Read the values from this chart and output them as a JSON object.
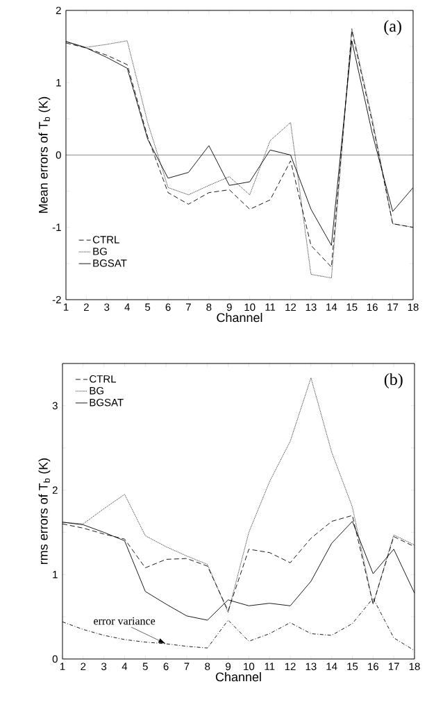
{
  "chart_data": [
    {
      "type": "line",
      "xlabel": "Channel",
      "ylabel": "Mean errors of T$_{b}$ (K)",
      "annotations": [
        "(a)"
      ],
      "x": [
        1,
        2,
        3,
        4,
        5,
        6,
        7,
        8,
        9,
        10,
        11,
        12,
        13,
        14,
        15,
        16,
        17,
        18
      ],
      "xlim": [
        1,
        18
      ],
      "xticks": [
        1,
        2,
        3,
        4,
        5,
        6,
        7,
        8,
        9,
        10,
        11,
        12,
        13,
        14,
        15,
        16,
        17,
        18
      ],
      "ylim": [
        -2,
        2
      ],
      "yticks": [
        -2,
        {
          "value": -1.5,
          "label": null
        },
        -1,
        {
          "value": -0.5,
          "label": null
        },
        0,
        {
          "value": 0.5,
          "label": null
        },
        1,
        {
          "value": 1.5,
          "label": null
        },
        2
      ],
      "ref_lines": [
        {
          "axis": "y",
          "value": 0,
          "color": "#000000"
        }
      ],
      "legend": "bottom left",
      "series": [
        {
          "name": "CTRL",
          "color": "#000000",
          "line_style": "dashed",
          "values": [
            1.55,
            1.48,
            1.38,
            1.25,
            0.25,
            -0.52,
            -0.68,
            -0.52,
            -0.48,
            -0.75,
            -0.62,
            -0.08,
            -1.25,
            -1.55,
            1.72,
            0.45,
            -0.95,
            -1.0
          ]
        },
        {
          "name": "BG",
          "color": "#000000",
          "line_style": "dotted",
          "values": [
            1.57,
            1.49,
            1.53,
            1.58,
            0.45,
            -0.45,
            -0.55,
            -0.42,
            -0.3,
            -0.55,
            0.2,
            0.45,
            -1.65,
            -1.7,
            1.75,
            0.5,
            -0.95,
            -1.0
          ]
        },
        {
          "name": "BGSAT",
          "color": "#000000",
          "line_style": "solid",
          "values": [
            1.57,
            1.48,
            1.35,
            1.2,
            0.22,
            -0.32,
            -0.24,
            0.13,
            -0.42,
            -0.37,
            0.07,
            0.0,
            -0.75,
            -1.25,
            1.58,
            0.3,
            -0.78,
            -0.45
          ]
        }
      ]
    },
    {
      "type": "line",
      "xlabel": "Channel",
      "ylabel": "rms errors of T$_{b}$ (K)",
      "annotations": [
        "(b)",
        {
          "text": "error variance",
          "x": 6,
          "y": 0.18
        }
      ],
      "x": [
        1,
        2,
        3,
        4,
        5,
        6,
        7,
        8,
        9,
        10,
        11,
        12,
        13,
        14,
        15,
        16,
        17,
        18
      ],
      "xlim": [
        1,
        18
      ],
      "xticks": [
        1,
        2,
        3,
        4,
        5,
        6,
        7,
        8,
        9,
        10,
        11,
        12,
        13,
        14,
        15,
        16,
        17,
        18
      ],
      "ylim": [
        0,
        3.5
      ],
      "yticks": [
        0,
        {
          "value": 0.5,
          "label": null
        },
        1,
        {
          "value": 1.5,
          "label": null
        },
        2,
        {
          "value": 2.5,
          "label": null
        },
        3
      ],
      "legend": "top left",
      "series": [
        {
          "name": "CTRL",
          "color": "#000000",
          "line_style": "dashed",
          "values": [
            1.6,
            1.55,
            1.48,
            1.42,
            1.08,
            1.18,
            1.19,
            1.1,
            0.57,
            1.3,
            1.26,
            1.14,
            1.43,
            1.63,
            1.7,
            0.65,
            1.45,
            1.33
          ]
        },
        {
          "name": "BG",
          "color": "#000000",
          "line_style": "dotted",
          "values": [
            1.62,
            1.6,
            1.78,
            1.95,
            1.46,
            1.33,
            1.22,
            1.12,
            0.55,
            1.5,
            2.1,
            2.58,
            3.33,
            2.45,
            1.8,
            0.65,
            1.47,
            1.35
          ]
        },
        {
          "name": "BGSAT",
          "color": "#000000",
          "line_style": "solid",
          "values": [
            1.62,
            1.59,
            1.5,
            1.4,
            0.8,
            0.65,
            0.51,
            0.46,
            0.7,
            0.63,
            0.66,
            0.63,
            0.92,
            1.37,
            1.63,
            1.01,
            1.3,
            0.78
          ]
        },
        {
          "color": "#000000",
          "line_style": "dashdot",
          "values": [
            0.44,
            0.35,
            0.28,
            0.23,
            0.2,
            0.18,
            0.15,
            0.13,
            0.46,
            0.21,
            0.3,
            0.43,
            0.3,
            0.28,
            0.42,
            0.72,
            0.25,
            0.1
          ]
        }
      ]
    }
  ]
}
